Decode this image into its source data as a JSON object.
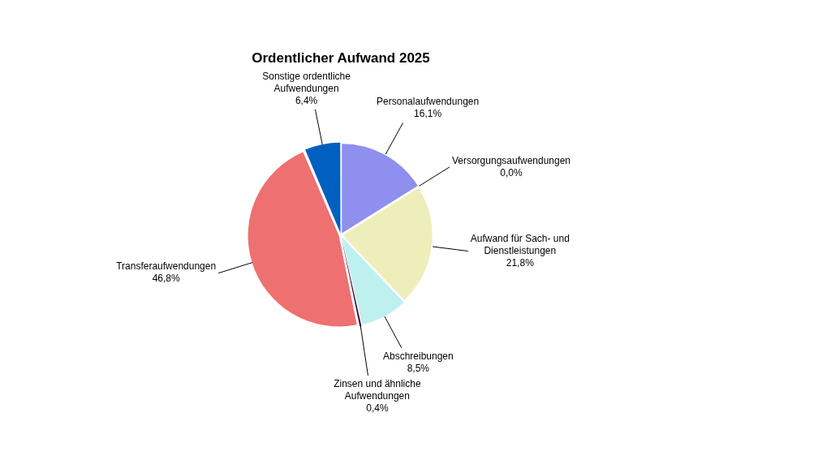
{
  "chart_data": {
    "type": "pie",
    "title": "Ordentlicher Aufwand 2025",
    "categories": [
      "Personalaufwendungen",
      "Versorgungsaufwendungen",
      "Aufwand für Sach- und Dienstleistungen",
      "Abschreibungen",
      "Zinsen und ähnliche Aufwendungen",
      "Transferaufwendungen",
      "Sonstige ordentliche Aufwendungen"
    ],
    "values": [
      16.1,
      0.0,
      21.8,
      8.5,
      0.4,
      46.8,
      6.4
    ],
    "colors": [
      "#8f8fef",
      "#5a1a3a",
      "#eeeebb",
      "#bff0f0",
      "#3a0030",
      "#ee7070",
      "#0060c0"
    ],
    "value_labels": [
      "16,1%",
      "0,0%",
      "21,8%",
      "8,5%",
      "0,4%",
      "46,8%",
      "6,4%"
    ]
  }
}
